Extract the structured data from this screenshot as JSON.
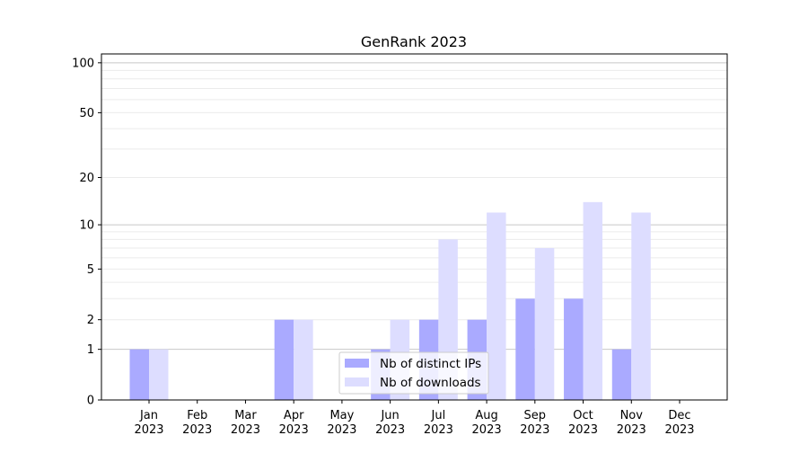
{
  "chart_data": {
    "type": "bar",
    "title": "GenRank 2023",
    "xlabel": "",
    "ylabel": "",
    "yscale": "log(1+y)",
    "ylim": [
      0,
      113
    ],
    "yticks": [
      0,
      1,
      2,
      5,
      10,
      20,
      50,
      100
    ],
    "grid": true,
    "categories": [
      [
        "Jan",
        "2023"
      ],
      [
        "Feb",
        "2023"
      ],
      [
        "Mar",
        "2023"
      ],
      [
        "Apr",
        "2023"
      ],
      [
        "May",
        "2023"
      ],
      [
        "Jun",
        "2023"
      ],
      [
        "Jul",
        "2023"
      ],
      [
        "Aug",
        "2023"
      ],
      [
        "Sep",
        "2023"
      ],
      [
        "Oct",
        "2023"
      ],
      [
        "Nov",
        "2023"
      ],
      [
        "Dec",
        "2023"
      ]
    ],
    "series": [
      {
        "name": "Nb of distinct IPs",
        "color": "#aaaaff",
        "values": [
          1,
          0,
          0,
          2,
          0,
          1,
          2,
          2,
          3,
          3,
          1,
          0
        ]
      },
      {
        "name": "Nb of downloads",
        "color": "#ddddff",
        "values": [
          1,
          0,
          0,
          2,
          0,
          2,
          8,
          12,
          7,
          14,
          12,
          0
        ]
      }
    ],
    "legend_position": "lower-center"
  }
}
